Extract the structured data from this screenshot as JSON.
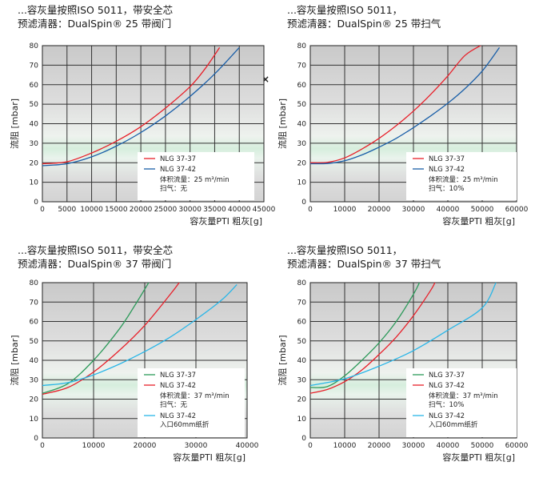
{
  "close_label": "×",
  "chart_data": [
    {
      "type": "line",
      "title_line1": "...容灰量按照ISO 5011，带安全芯",
      "title_line2": "预滤清器：DualSpin® 25 带阀门",
      "xlabel": "容灰量PTI 粗灰[g]",
      "ylabel": "流阻 [mbar]",
      "xlim": [
        0,
        45000
      ],
      "ylim": [
        0,
        80
      ],
      "xticks": [
        0,
        5000,
        10000,
        15000,
        20000,
        25000,
        30000,
        35000,
        40000,
        45000
      ],
      "xtick_labels": [
        "0",
        "5000",
        "10000",
        "15000",
        "20000",
        "25000",
        "30000",
        "35000",
        "40000",
        "45000"
      ],
      "yticks": [
        0,
        10,
        20,
        30,
        40,
        50,
        60,
        70,
        80
      ],
      "ytick_labels": [
        "0",
        "10",
        "20",
        "30",
        "40",
        "50",
        "60",
        "70",
        "80"
      ],
      "legend_position": "lower-right",
      "series": [
        {
          "name": "NLG 37-37",
          "color": "#e8202a",
          "x": [
            0,
            5000,
            10000,
            15000,
            20000,
            25000,
            30000,
            33000,
            36000
          ],
          "y": [
            19.5,
            20.5,
            25,
            31,
            38.5,
            48,
            59,
            68,
            79
          ]
        },
        {
          "name": "NLG 37-42",
          "color": "#1a5fa8",
          "x": [
            0,
            5000,
            10000,
            15000,
            20000,
            25000,
            30000,
            35000,
            40000
          ],
          "y": [
            18.5,
            19.5,
            23,
            28.5,
            35.5,
            44,
            54,
            65.5,
            79
          ]
        }
      ],
      "legend_notes": [
        "体积流量：25 m³/min",
        "扫气：无"
      ]
    },
    {
      "type": "line",
      "title_line1": "...容灰量按照ISO 5011，",
      "title_line2": "预滤清器：DualSpin® 25 带扫气",
      "xlabel": "容灰量PTI 粗灰[g]",
      "ylabel": "流阻 [mbar]",
      "xlim": [
        0,
        60000
      ],
      "ylim": [
        0,
        80
      ],
      "xticks": [
        0,
        10000,
        20000,
        30000,
        40000,
        50000,
        60000
      ],
      "xtick_labels": [
        "0",
        "10000",
        "20000",
        "30000",
        "40000",
        "50000",
        "60000"
      ],
      "yticks": [
        0,
        10,
        20,
        30,
        40,
        50,
        60,
        70,
        80
      ],
      "ytick_labels": [
        "0",
        "10",
        "20",
        "30",
        "40",
        "50",
        "60",
        "70",
        "80"
      ],
      "legend_position": "lower-right",
      "series": [
        {
          "name": "NLG 37-37",
          "color": "#e8202a",
          "x": [
            0,
            5000,
            10000,
            15000,
            20000,
            25000,
            30000,
            35000,
            40000,
            45000,
            50000
          ],
          "y": [
            20,
            20.2,
            22.5,
            27,
            32.5,
            39,
            46.5,
            55,
            64.5,
            75,
            80.5
          ]
        },
        {
          "name": "NLG 37-42",
          "color": "#1a5fa8",
          "x": [
            0,
            5000,
            10000,
            15000,
            20000,
            25000,
            30000,
            35000,
            40000,
            45000,
            50000,
            55000
          ],
          "y": [
            19.5,
            19.6,
            21,
            24,
            28,
            32.5,
            38,
            44,
            50.5,
            58,
            67,
            79
          ]
        }
      ],
      "legend_notes": [
        "体积流量：25 m³/min",
        "扫气：10%"
      ]
    },
    {
      "type": "line",
      "title_line1": "...容灰量按照ISO 5011，带安全芯",
      "title_line2": "预滤清器：DualSpin® 37 带阀门",
      "xlabel": "容灰量PTI 粗灰[g]",
      "ylabel": "流阻 [mbar]",
      "xlim": [
        0,
        40000
      ],
      "ylim": [
        0,
        80
      ],
      "xticks": [
        0,
        10000,
        20000,
        30000,
        40000
      ],
      "xtick_labels": [
        "0",
        "10000",
        "20000",
        "30000",
        "40000"
      ],
      "yticks": [
        0,
        10,
        20,
        30,
        40,
        50,
        60,
        70,
        80
      ],
      "ytick_labels": [
        "0",
        "10",
        "20",
        "30",
        "40",
        "50",
        "60",
        "70",
        "80"
      ],
      "legend_position": "lower-right",
      "series": [
        {
          "name": "NLG 37-37",
          "color": "#2e9a5b",
          "x": [
            0,
            5000,
            10000,
            15000,
            18000,
            21000
          ],
          "y": [
            23,
            28,
            40,
            56,
            68,
            81
          ]
        },
        {
          "name": "NLG 37-42",
          "color": "#e8202a",
          "x": [
            0,
            5000,
            10000,
            15000,
            20000,
            25000,
            27000
          ],
          "y": [
            22.5,
            26,
            34,
            45,
            58,
            74,
            81
          ]
        },
        {
          "name": "NLG 37-42",
          "color": "#29b6e8",
          "x": [
            0,
            5000,
            10000,
            15000,
            20000,
            25000,
            30000,
            35000,
            38000
          ],
          "y": [
            27,
            28.5,
            32.5,
            38,
            44.5,
            52,
            61,
            71,
            79
          ]
        }
      ],
      "legend_notes": [
        "体积流量：37 m³/min",
        "扫气：无"
      ],
      "legend_extra_note": "入口60mm纸折"
    },
    {
      "type": "line",
      "title_line1": "...容灰量按照ISO 5011，",
      "title_line2": "预滤清器：DualSpin® 37 带扫气",
      "xlabel": "容灰量PTI 粗灰[g]",
      "ylabel": "流阻 [mbar]",
      "xlim": [
        0,
        60000
      ],
      "ylim": [
        0,
        80
      ],
      "xticks": [
        0,
        10000,
        20000,
        30000,
        40000,
        50000,
        60000
      ],
      "xtick_labels": [
        "0",
        "10000",
        "20000",
        "30000",
        "40000",
        "50000",
        "60000"
      ],
      "yticks": [
        0,
        10,
        20,
        30,
        40,
        50,
        60,
        70,
        80
      ],
      "ytick_labels": [
        "0",
        "10",
        "20",
        "30",
        "40",
        "50",
        "60",
        "70",
        "80"
      ],
      "legend_position": "lower-right",
      "series": [
        {
          "name": "NLG 37-37",
          "color": "#2e9a5b",
          "x": [
            0,
            5000,
            10000,
            15000,
            20000,
            25000,
            30000,
            32000
          ],
          "y": [
            26,
            26.5,
            32,
            40,
            49,
            60,
            74,
            81
          ]
        },
        {
          "name": "NLG 37-42",
          "color": "#e8202a",
          "x": [
            0,
            5000,
            10000,
            15000,
            20000,
            25000,
            30000,
            35000,
            36500
          ],
          "y": [
            23,
            25,
            29,
            35,
            43,
            52,
            63,
            76,
            81
          ]
        },
        {
          "name": "NLG 37-42",
          "color": "#29b6e8",
          "x": [
            0,
            10000,
            20000,
            30000,
            40000,
            50000,
            54000
          ],
          "y": [
            27,
            30.5,
            37,
            45,
            55.5,
            67,
            80
          ]
        }
      ],
      "legend_notes": [
        "体积流量：37 m³/min",
        "扫气：10%"
      ],
      "legend_extra_note": "入口60mm纸折"
    }
  ]
}
